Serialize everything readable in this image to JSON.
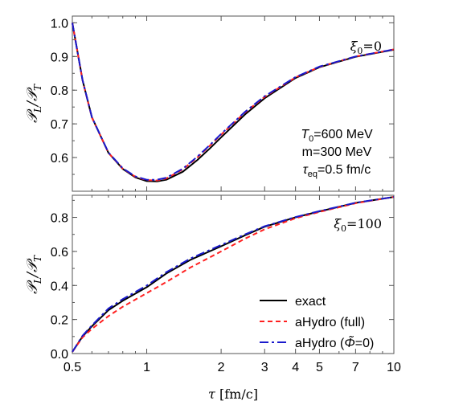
{
  "chart_data": [
    {
      "type": "line",
      "xscale": "log",
      "xlim": [
        0.5,
        10
      ],
      "ylim": [
        0.5,
        1.02
      ],
      "ylabel": "𝒫L/𝒫T",
      "ylabel_main": "𝒫",
      "ylabel_sub1": "L",
      "ylabel_slash": "/𝒫",
      "ylabel_sub2": "T",
      "yticks": [
        0.6,
        0.7,
        0.8,
        0.9,
        1.0
      ],
      "ytick_labels": [
        "0.6",
        "0.7",
        "0.8",
        "0.9",
        "1.0"
      ],
      "annotation_xi": "ξ",
      "annotation_xi_sub": "0",
      "annotation_xi_value": "=0",
      "params": {
        "T_sym": "T",
        "T_sub": "0",
        "T_val": "=600 MeV",
        "m": "m=300 MeV",
        "tau_sym": "τ",
        "tau_sub": "eq",
        "tau_val": "=0.5 fm/c"
      },
      "series": [
        {
          "name": "exact",
          "color": "#000000",
          "x": [
            0.5,
            0.55,
            0.6,
            0.7,
            0.8,
            0.9,
            1.0,
            1.1,
            1.2,
            1.4,
            1.6,
            1.8,
            2.0,
            2.5,
            3.0,
            4.0,
            5.0,
            7.0,
            10.0
          ],
          "y": [
            1.0,
            0.83,
            0.72,
            0.614,
            0.566,
            0.541,
            0.53,
            0.529,
            0.534,
            0.558,
            0.592,
            0.627,
            0.66,
            0.728,
            0.776,
            0.836,
            0.868,
            0.899,
            0.92
          ]
        },
        {
          "name": "aHydro (full)",
          "color": "#ff2020",
          "x": [
            0.5,
            0.55,
            0.6,
            0.7,
            0.8,
            0.9,
            1.0,
            1.1,
            1.2,
            1.4,
            1.6,
            1.8,
            2.0,
            2.5,
            3.0,
            4.0,
            5.0,
            7.0,
            10.0
          ],
          "y": [
            1.0,
            0.829,
            0.719,
            0.614,
            0.567,
            0.543,
            0.533,
            0.532,
            0.538,
            0.565,
            0.6,
            0.635,
            0.668,
            0.734,
            0.78,
            0.838,
            0.869,
            0.9,
            0.921
          ]
        },
        {
          "name": "aHydro (Φ̃=0)",
          "color": "#1a1acc",
          "x": [
            0.5,
            0.55,
            0.6,
            0.7,
            0.8,
            0.9,
            1.0,
            1.1,
            1.2,
            1.4,
            1.6,
            1.8,
            2.0,
            2.5,
            3.0,
            4.0,
            5.0,
            7.0,
            10.0
          ],
          "y": [
            1.0,
            0.83,
            0.72,
            0.615,
            0.568,
            0.544,
            0.534,
            0.534,
            0.54,
            0.567,
            0.602,
            0.637,
            0.67,
            0.736,
            0.782,
            0.839,
            0.87,
            0.9,
            0.921
          ]
        }
      ]
    },
    {
      "type": "line",
      "xscale": "log",
      "xlim": [
        0.5,
        10
      ],
      "ylim": [
        0.0,
        0.93
      ],
      "xlabel": "τ [fm/c]",
      "xlabel_sym": "τ",
      "xlabel_unit": "[fm/c]",
      "ylabel": "𝒫L/𝒫T",
      "ylabel_main": "𝒫",
      "ylabel_sub1": "L",
      "ylabel_slash": "/𝒫",
      "ylabel_sub2": "T",
      "xticks": [
        0.5,
        1,
        2,
        3,
        4,
        5,
        7,
        10
      ],
      "xtick_labels": [
        "0.5",
        "1",
        "2",
        "3",
        "4",
        "5",
        "7",
        "10"
      ],
      "yticks": [
        0.0,
        0.2,
        0.4,
        0.6,
        0.8
      ],
      "ytick_labels": [
        "0.0",
        "0.2",
        "0.4",
        "0.6",
        "0.8"
      ],
      "annotation_xi": "ξ",
      "annotation_xi_sub": "0",
      "annotation_xi_value": "=100",
      "legend": {
        "placement": "bottom-right",
        "entries": [
          "exact",
          "aHydro (full)",
          "aHydro (Φ̃=0)"
        ],
        "entry3_prefix": "aHydro (",
        "entry3_sym": "Φ̃",
        "entry3_suffix": "=0)"
      },
      "series": [
        {
          "name": "exact",
          "color": "#000000",
          "x": [
            0.5,
            0.55,
            0.6,
            0.7,
            0.8,
            1.0,
            1.2,
            1.5,
            2.0,
            2.5,
            3.0,
            4.0,
            5.0,
            7.0,
            10.0
          ],
          "y": [
            0.01,
            0.1,
            0.16,
            0.255,
            0.31,
            0.39,
            0.47,
            0.55,
            0.63,
            0.695,
            0.745,
            0.8,
            0.835,
            0.885,
            0.92
          ]
        },
        {
          "name": "aHydro (full)",
          "color": "#ff2020",
          "x": [
            0.5,
            0.55,
            0.6,
            0.7,
            0.8,
            1.0,
            1.2,
            1.5,
            2.0,
            2.5,
            3.0,
            4.0,
            5.0,
            7.0,
            10.0
          ],
          "y": [
            0.01,
            0.095,
            0.145,
            0.22,
            0.275,
            0.355,
            0.42,
            0.505,
            0.6,
            0.675,
            0.73,
            0.795,
            0.832,
            0.883,
            0.92
          ]
        },
        {
          "name": "aHydro (Φ̃=0)",
          "color": "#1a1acc",
          "x": [
            0.5,
            0.55,
            0.6,
            0.7,
            0.8,
            1.0,
            1.2,
            1.5,
            2.0,
            2.5,
            3.0,
            4.0,
            5.0,
            7.0,
            10.0
          ],
          "y": [
            0.01,
            0.105,
            0.165,
            0.265,
            0.32,
            0.4,
            0.478,
            0.558,
            0.638,
            0.7,
            0.748,
            0.802,
            0.837,
            0.886,
            0.92
          ]
        }
      ]
    }
  ]
}
